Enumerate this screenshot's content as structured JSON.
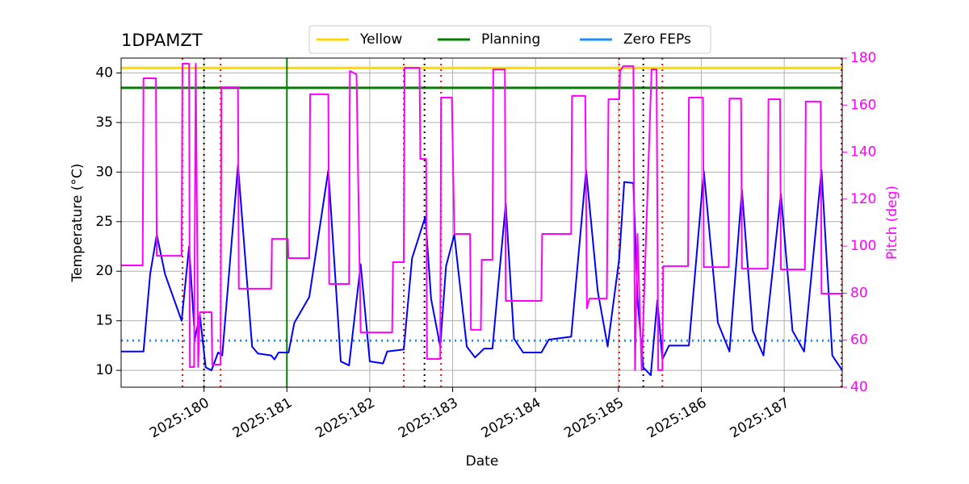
{
  "chart_data": {
    "type": "line",
    "title": "1DPAMZT",
    "xlabel": "Date",
    "ylabel": "Temperature (°C)",
    "y2label": "Pitch (deg)",
    "xlim": [
      179.0,
      187.7
    ],
    "xticks": [
      {
        "value": 180,
        "label": "2025:180"
      },
      {
        "value": 181,
        "label": "2025:181"
      },
      {
        "value": 182,
        "label": "2025:182"
      },
      {
        "value": 183,
        "label": "2025:183"
      },
      {
        "value": 184,
        "label": "2025:184"
      },
      {
        "value": 185,
        "label": "2025:185"
      },
      {
        "value": 186,
        "label": "2025:186"
      },
      {
        "value": 187,
        "label": "2025:187"
      }
    ],
    "ylim": [
      8.3,
      41.5
    ],
    "yticks": [
      10,
      15,
      20,
      25,
      30,
      35,
      40
    ],
    "y2lim": [
      40,
      180
    ],
    "y2ticks": [
      40,
      60,
      80,
      100,
      120,
      140,
      160,
      180
    ],
    "y2color": "magenta",
    "grid": true,
    "legend": "top",
    "hlines": [
      {
        "name": "Yellow",
        "value": 40.5,
        "color": "gold",
        "style": "solid"
      },
      {
        "name": "Planning",
        "value": 38.5,
        "color": "green",
        "style": "solid"
      },
      {
        "name": "Zero FEPs",
        "value": 13,
        "color": "dodgerblue",
        "style": "dotted"
      }
    ],
    "vlines": [
      {
        "x": 179.74,
        "color": "red",
        "style": "dotted"
      },
      {
        "x": 180.0,
        "color": "black",
        "style": "dotted"
      },
      {
        "x": 180.2,
        "color": "red",
        "style": "dotted"
      },
      {
        "x": 181.0,
        "color": "green",
        "style": "solid"
      },
      {
        "x": 182.41,
        "color": "red",
        "style": "dotted"
      },
      {
        "x": 182.66,
        "color": "black",
        "style": "dotted"
      },
      {
        "x": 182.86,
        "color": "red",
        "style": "dotted"
      },
      {
        "x": 185.01,
        "color": "red",
        "style": "dotted"
      },
      {
        "x": 185.3,
        "color": "black",
        "style": "dotted"
      },
      {
        "x": 185.53,
        "color": "red",
        "style": "dotted"
      },
      {
        "x": 187.69,
        "color": "red",
        "style": "dotted"
      }
    ],
    "series": [
      {
        "color": "blue",
        "axis": "y",
        "x": [
          179.0,
          179.27,
          179.35,
          179.43,
          179.53,
          179.73,
          179.82,
          179.89,
          179.95,
          180.02,
          180.09,
          180.17,
          180.22,
          180.41,
          180.58,
          180.65,
          180.81,
          180.85,
          180.9,
          181.02,
          181.09,
          181.27,
          181.5,
          181.65,
          181.75,
          181.89,
          182.0,
          182.16,
          182.21,
          182.41,
          182.51,
          182.67,
          182.74,
          182.85,
          182.92,
          183.02,
          183.17,
          183.27,
          183.38,
          183.48,
          183.64,
          183.74,
          183.85,
          184.07,
          184.16,
          184.43,
          184.61,
          184.75,
          184.87,
          185.01,
          185.07,
          185.18,
          185.23,
          185.3,
          185.39,
          185.47,
          185.53,
          185.61,
          185.85,
          186.03,
          186.2,
          186.34,
          186.49,
          186.62,
          186.75,
          186.96,
          187.1,
          187.24,
          187.45,
          187.58,
          187.7
        ],
        "values": [
          11.9,
          11.9,
          19.7,
          23.7,
          19.7,
          15.0,
          22.5,
          13.2,
          15.6,
          10.3,
          10.0,
          11.8,
          11.5,
          30.7,
          12.4,
          11.7,
          11.5,
          11.1,
          11.8,
          11.8,
          14.8,
          17.4,
          30.2,
          10.9,
          10.5,
          20.7,
          10.9,
          10.7,
          11.9,
          12.1,
          21.3,
          25.5,
          17.2,
          12.4,
          20.5,
          23.7,
          12.4,
          11.3,
          12.2,
          12.2,
          26.8,
          13.2,
          11.8,
          11.8,
          13.1,
          13.4,
          30.2,
          18.0,
          12.4,
          21.3,
          29.0,
          28.9,
          17.2,
          10.3,
          9.5,
          17.1,
          11.1,
          12.5,
          12.5,
          30.1,
          14.8,
          11.9,
          28.2,
          14.0,
          11.5,
          27.8,
          14.0,
          11.9,
          30.2,
          11.5,
          10.0
        ]
      },
      {
        "color": "magenta",
        "axis": "y2",
        "x": [
          179.0,
          179.26,
          179.27,
          179.42,
          179.43,
          179.73,
          179.74,
          179.82,
          179.83,
          179.88,
          179.9,
          179.93,
          179.95,
          180.09,
          180.1,
          180.2,
          180.21,
          180.41,
          180.42,
          180.81,
          180.82,
          181.01,
          181.02,
          181.27,
          181.28,
          181.5,
          181.51,
          181.75,
          181.76,
          181.84,
          181.89,
          182.27,
          182.28,
          182.41,
          182.42,
          182.6,
          182.61,
          182.68,
          182.69,
          182.85,
          182.86,
          182.99,
          183.02,
          183.21,
          183.22,
          183.34,
          183.35,
          183.48,
          183.49,
          183.63,
          183.64,
          184.07,
          184.08,
          184.43,
          184.44,
          184.6,
          184.62,
          184.65,
          184.86,
          184.88,
          185.01,
          185.02,
          185.06,
          185.18,
          185.2,
          185.23,
          185.28,
          185.4,
          185.46,
          185.48,
          185.53,
          185.54,
          185.84,
          185.85,
          186.02,
          186.03,
          186.33,
          186.34,
          186.48,
          186.49,
          186.8,
          186.81,
          186.95,
          186.96,
          187.25,
          187.26,
          187.44,
          187.45,
          187.7
        ],
        "values": [
          91.8,
          91.8,
          171.4,
          171.4,
          95.9,
          95.9,
          177.6,
          177.6,
          48.6,
          48.6,
          177.6,
          48.6,
          71.9,
          71.9,
          49.6,
          49.6,
          167.6,
          167.6,
          81.9,
          81.9,
          103.1,
          103.1,
          94.9,
          94.9,
          164.6,
          164.6,
          83.9,
          83.9,
          174.5,
          173.1,
          63.3,
          63.3,
          93.2,
          93.2,
          175.9,
          175.9,
          137.1,
          137.1,
          52.0,
          52.0,
          163.2,
          163.2,
          105.2,
          105.2,
          64.4,
          64.4,
          94.2,
          94.2,
          175.2,
          175.2,
          76.7,
          76.7,
          105.2,
          105.2,
          163.9,
          163.9,
          73.6,
          77.7,
          77.7,
          162.5,
          162.5,
          174.5,
          176.6,
          176.6,
          47.2,
          105.2,
          47.2,
          175.2,
          175.2,
          47.2,
          47.2,
          91.5,
          91.5,
          163.2,
          163.2,
          91.1,
          91.1,
          162.8,
          162.8,
          90.4,
          90.4,
          162.5,
          162.5,
          90.1,
          90.1,
          161.5,
          161.5,
          79.8,
          79.8
        ]
      }
    ]
  }
}
